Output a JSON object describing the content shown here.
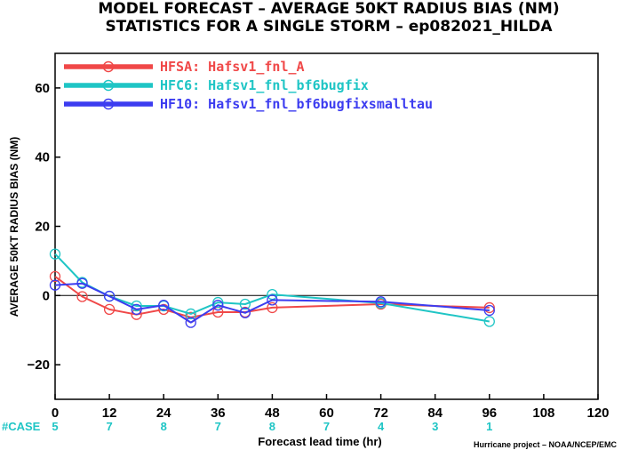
{
  "chart_data": {
    "type": "line",
    "title_line1": "MODEL FORECAST – AVERAGE 50KT RADIUS BIAS (NM)",
    "title_line2": "STATISTICS FOR A SINGLE STORM – ep082021_HILDA",
    "ylabel": "AVERAGE 50KT RADIUS BIAS (NM)",
    "xlabel": "Forecast lead time (hr)",
    "credit": "Hurricane project – NOAA/NCEP/EMC",
    "xlim": [
      0,
      120
    ],
    "ylim": [
      -30,
      70
    ],
    "xticks": [
      0,
      12,
      24,
      36,
      48,
      60,
      72,
      84,
      96,
      108,
      120
    ],
    "yticks": [
      -20,
      0,
      20,
      40,
      60
    ],
    "ytick_labels": [
      "−20",
      "0",
      "20",
      "40",
      "60"
    ],
    "zero_line": true,
    "legend_placement": "top-left",
    "series": [
      {
        "name": "HFSA: Hafsv1_fnl_A",
        "color": "#f04848",
        "x": [
          0,
          6,
          12,
          18,
          24,
          30,
          36,
          42,
          48,
          72,
          96
        ],
        "y": [
          5.5,
          -0.3,
          -4.0,
          -5.5,
          -4.0,
          -6.3,
          -4.8,
          -4.8,
          -3.5,
          -2.5,
          -3.5
        ]
      },
      {
        "name": "HFC6: Hafsv1_fnl_bf6bugfix",
        "color": "#1fc5c5",
        "x": [
          0,
          6,
          12,
          18,
          24,
          30,
          36,
          42,
          48,
          72,
          96
        ],
        "y": [
          12.0,
          3.8,
          -0.2,
          -3.0,
          -3.0,
          -5.3,
          -2.0,
          -2.5,
          0.3,
          -2.2,
          -7.5
        ]
      },
      {
        "name": "HF10: Hafsv1_fnl_bf6bugfixsmalltau",
        "color": "#3c3cf0",
        "x": [
          0,
          6,
          12,
          18,
          24,
          30,
          36,
          42,
          48,
          72,
          96
        ],
        "y": [
          3.0,
          3.5,
          -0.2,
          -4.0,
          -2.8,
          -7.8,
          -2.8,
          -5.0,
          -1.3,
          -1.8,
          -4.3
        ]
      }
    ],
    "case_label": "#CASE",
    "cases": [
      {
        "x": 0,
        "label": "5"
      },
      {
        "x": 12,
        "label": "7"
      },
      {
        "x": 24,
        "label": "8"
      },
      {
        "x": 36,
        "label": "7"
      },
      {
        "x": 48,
        "label": "8"
      },
      {
        "x": 60,
        "label": "7"
      },
      {
        "x": 72,
        "label": "4"
      },
      {
        "x": 84,
        "label": "3"
      },
      {
        "x": 96,
        "label": "1"
      }
    ]
  }
}
